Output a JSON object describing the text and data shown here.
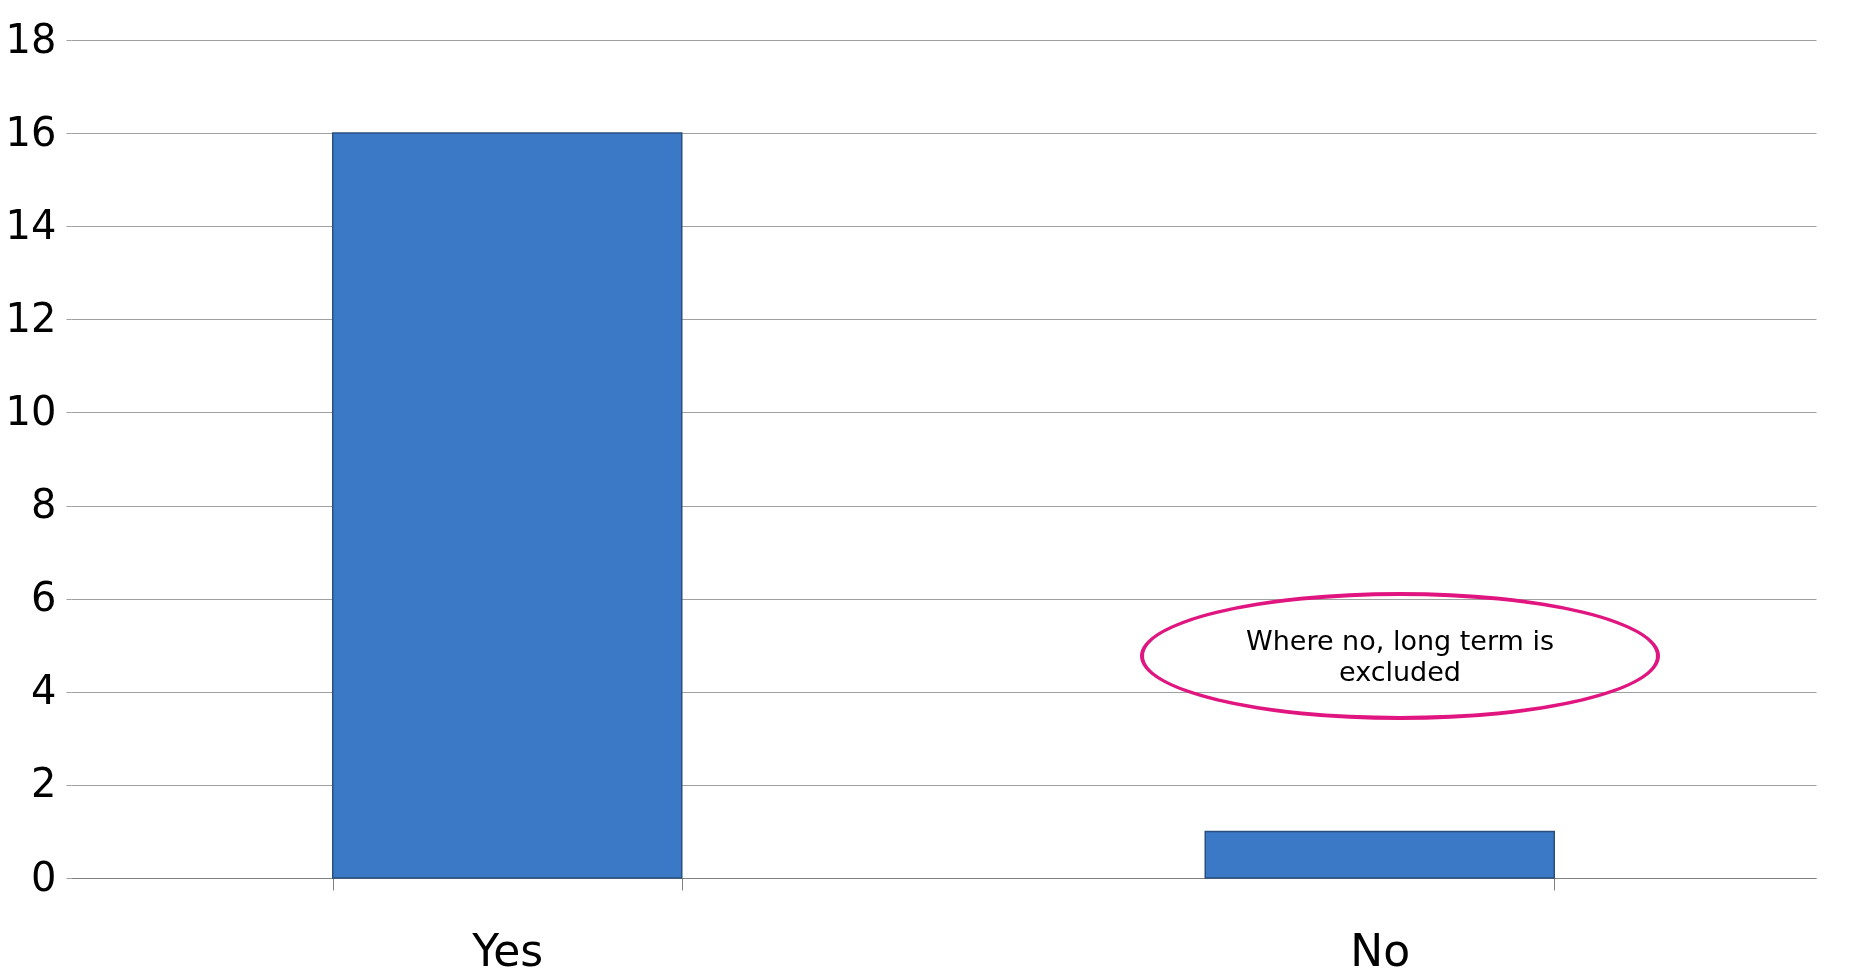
{
  "chart_data": {
    "type": "bar",
    "categories": [
      "Yes",
      "No"
    ],
    "values": [
      16,
      1
    ],
    "color": "#3b78c6",
    "ylim": [
      0,
      18
    ],
    "yticks": [
      0,
      2,
      4,
      6,
      8,
      10,
      12,
      14,
      16,
      18
    ],
    "grid": "y",
    "annotations": [
      "Where no, long term is excluded"
    ]
  }
}
